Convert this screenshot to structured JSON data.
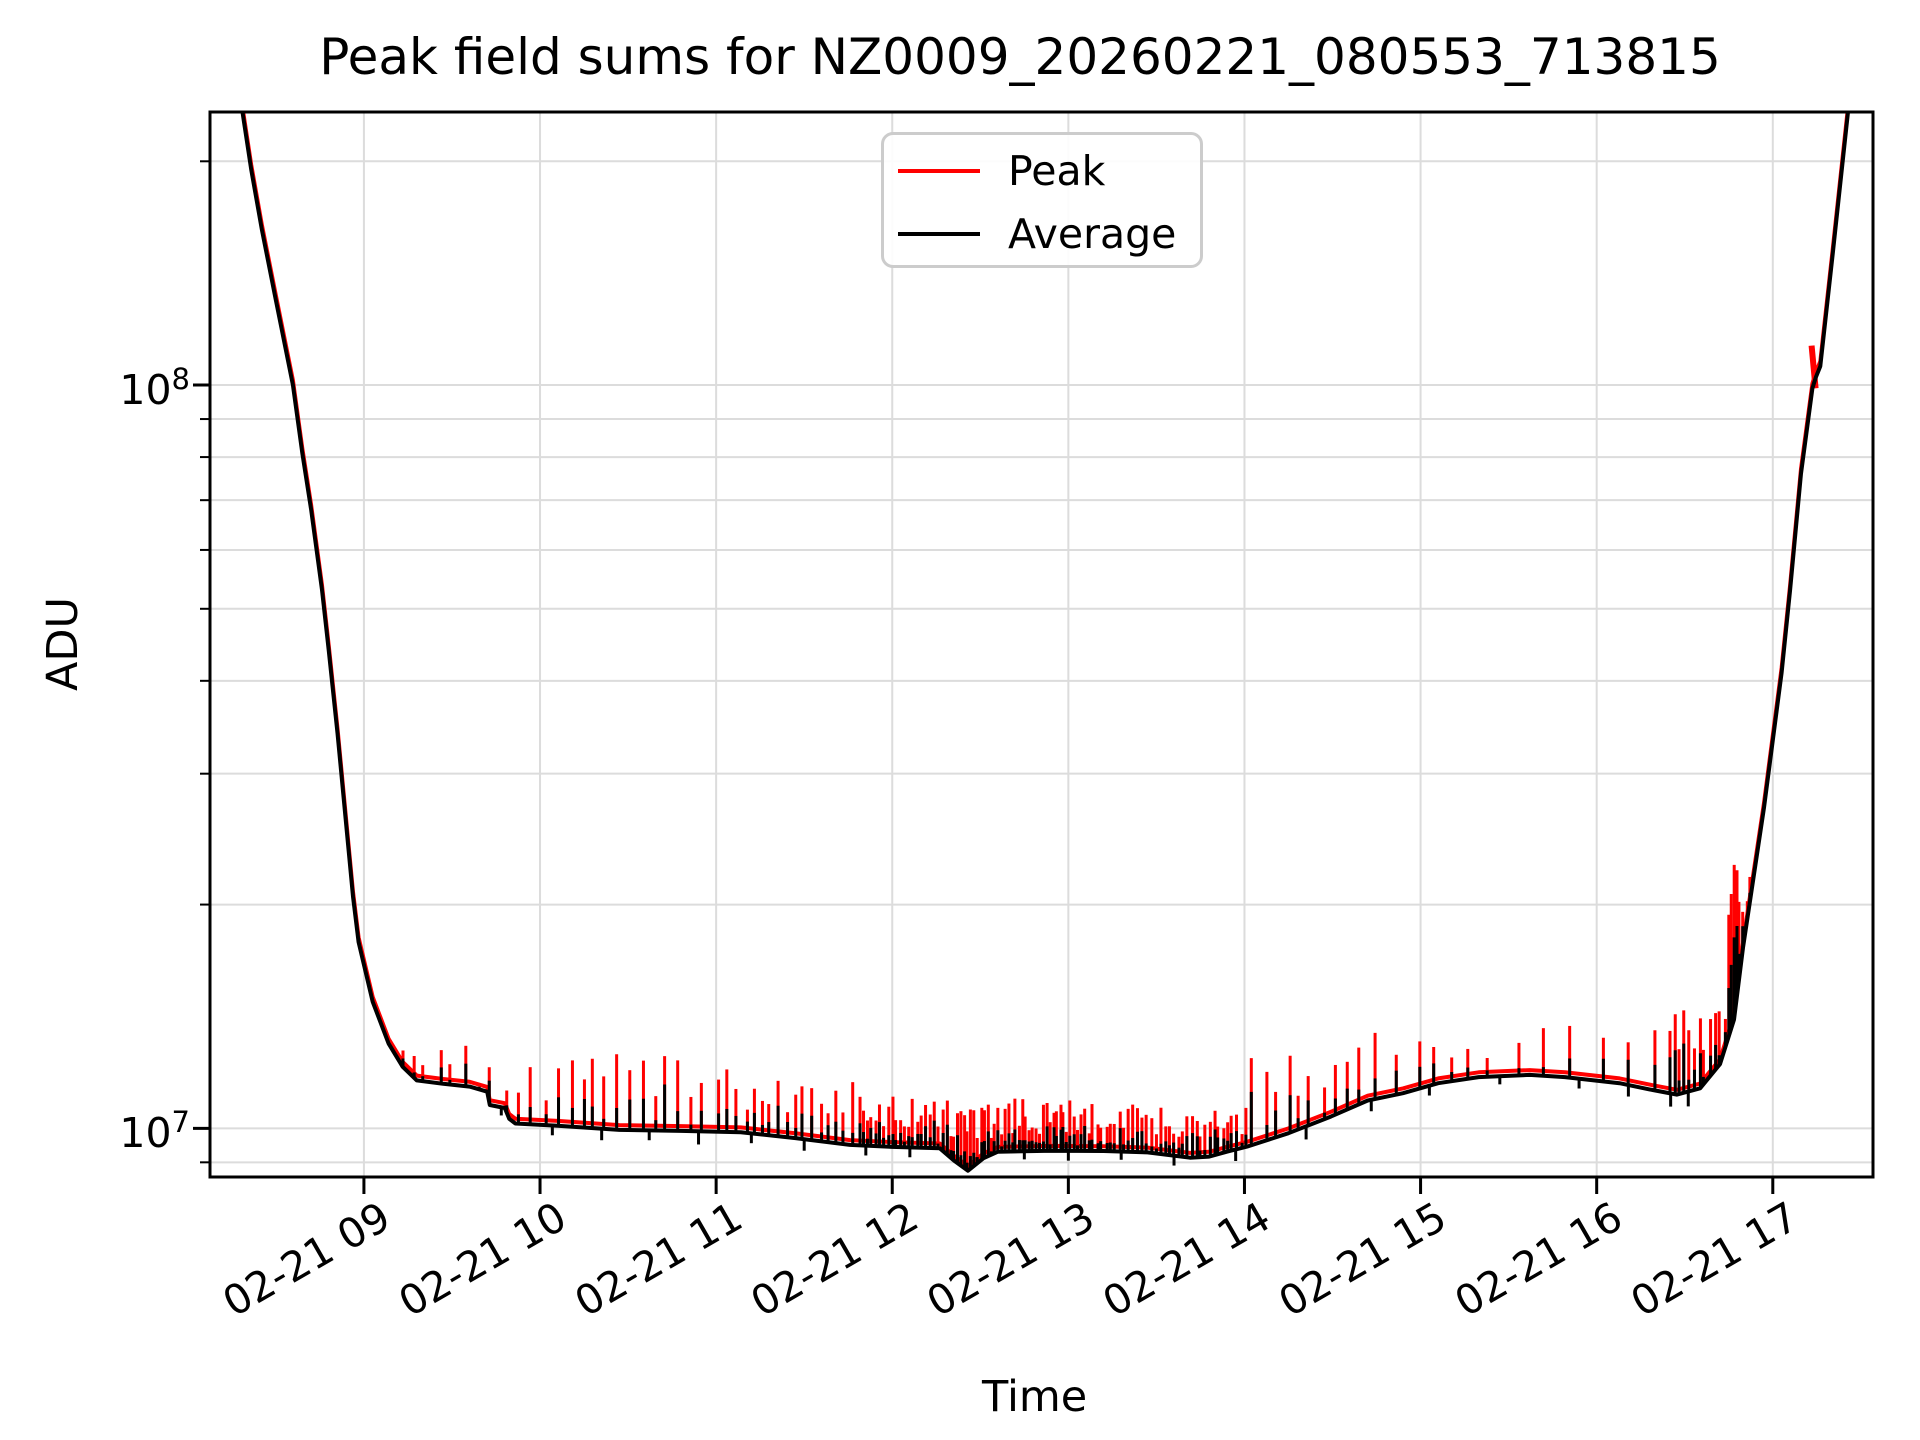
{
  "title": "Peak field sums for NZ0009_20260221_080553_713815",
  "axes": {
    "xlabel": "Time",
    "ylabel": "ADU"
  },
  "legend": {
    "items": [
      {
        "label": "Peak",
        "color": "#ff0000"
      },
      {
        "label": "Average",
        "color": "#000000"
      }
    ]
  },
  "chart_data": {
    "type": "line",
    "title": "Peak field sums for NZ0009_20260221_080553_713815",
    "xlabel": "Time",
    "ylabel": "ADU",
    "grid": true,
    "yscale": "log",
    "legend_position": "upper center-left inside",
    "xlim_hours": [
      8.126,
      17.569
    ],
    "ylim": [
      8600000,
      233000000
    ],
    "x_ticks": [
      {
        "h": 9,
        "label": "02-21 09"
      },
      {
        "h": 10,
        "label": "02-21 10"
      },
      {
        "h": 11,
        "label": "02-21 11"
      },
      {
        "h": 12,
        "label": "02-21 12"
      },
      {
        "h": 13,
        "label": "02-21 13"
      },
      {
        "h": 14,
        "label": "02-21 14"
      },
      {
        "h": 15,
        "label": "02-21 15"
      },
      {
        "h": 16,
        "label": "02-21 16"
      },
      {
        "h": 17,
        "label": "02-21 17"
      }
    ],
    "y_major_ticks": [
      {
        "v": 10000000,
        "base": "10",
        "exp": "7"
      },
      {
        "v": 100000000,
        "base": "10",
        "exp": "8"
      }
    ],
    "y_minor_ticks": [
      9000000,
      20000000,
      30000000,
      40000000,
      50000000,
      60000000,
      70000000,
      80000000,
      90000000,
      200000000
    ],
    "series": [
      {
        "name": "Peak",
        "color": "#ff0000",
        "role": "peak",
        "description": "tracks Average but spikes upward throughout the flat valley"
      },
      {
        "name": "Average",
        "color": "#000000",
        "role": "average"
      }
    ],
    "average_base_points": [
      [
        8.126,
        400000000
      ],
      [
        8.28,
        260000000
      ],
      [
        8.36,
        195000000
      ],
      [
        8.42,
        162000000
      ],
      [
        8.5,
        130000000
      ],
      [
        8.597,
        100000000
      ],
      [
        8.65,
        81000000
      ],
      [
        8.7,
        68000000
      ],
      [
        8.762,
        53000000
      ],
      [
        8.8,
        44000000
      ],
      [
        8.85,
        34000000
      ],
      [
        8.938,
        20500000
      ],
      [
        8.97,
        17800000
      ],
      [
        9.05,
        14800000
      ],
      [
        9.14,
        13000000
      ],
      [
        9.22,
        12100000
      ],
      [
        9.3,
        11600000
      ],
      [
        9.45,
        11480000
      ],
      [
        9.6,
        11380000
      ],
      [
        9.7,
        11200000
      ],
      [
        9.715,
        10750000
      ],
      [
        9.8,
        10650000
      ],
      [
        9.825,
        10300000
      ],
      [
        9.86,
        10150000
      ],
      [
        10.1,
        10080000
      ],
      [
        10.45,
        9950000
      ],
      [
        10.8,
        9920000
      ],
      [
        11.14,
        9880000
      ],
      [
        11.45,
        9700000
      ],
      [
        11.76,
        9500000
      ],
      [
        12.0,
        9440000
      ],
      [
        12.27,
        9400000
      ],
      [
        12.35,
        9050000
      ],
      [
        12.43,
        8770000
      ],
      [
        12.52,
        9120000
      ],
      [
        12.6,
        9300000
      ],
      [
        12.9,
        9330000
      ],
      [
        13.2,
        9320000
      ],
      [
        13.45,
        9280000
      ],
      [
        13.69,
        9130000
      ],
      [
        13.8,
        9160000
      ],
      [
        13.9,
        9300000
      ],
      [
        14.015,
        9450000
      ],
      [
        14.25,
        9850000
      ],
      [
        14.49,
        10370000
      ],
      [
        14.7,
        10900000
      ],
      [
        14.9,
        11150000
      ],
      [
        15.1,
        11500000
      ],
      [
        15.33,
        11720000
      ],
      [
        15.62,
        11800000
      ],
      [
        15.82,
        11720000
      ],
      [
        16.13,
        11500000
      ],
      [
        16.3,
        11280000
      ],
      [
        16.456,
        11100000
      ],
      [
        16.587,
        11320000
      ],
      [
        16.7,
        12200000
      ],
      [
        16.78,
        14000000
      ],
      [
        16.831,
        17500000
      ],
      [
        16.95,
        27000000
      ],
      [
        17.05,
        41000000
      ],
      [
        17.098,
        53000000
      ],
      [
        17.16,
        76000000
      ],
      [
        17.225,
        99000000
      ],
      [
        17.245,
        102500000
      ],
      [
        17.27,
        106000000
      ],
      [
        17.34,
        150000000
      ],
      [
        17.427,
        233000000
      ],
      [
        17.5,
        320000000
      ],
      [
        17.569,
        420000000
      ]
    ],
    "peak_over_average_ratio": 1.015,
    "peak_spike_clusters": [
      [
        9.1,
        9.6,
        7,
        11900000,
        13100000
      ],
      [
        9.62,
        9.98,
        5,
        11100000,
        12400000
      ],
      [
        10.0,
        11.1,
        16,
        10900000,
        12700000
      ],
      [
        11.1,
        11.8,
        15,
        10400000,
        11600000
      ],
      [
        11.8,
        12.32,
        22,
        10000000,
        11100000
      ],
      [
        12.32,
        13.1,
        40,
        9700000,
        11000000
      ],
      [
        13.1,
        14.02,
        36,
        9700000,
        10800000
      ],
      [
        14.02,
        14.6,
        9,
        10600000,
        12600000
      ],
      [
        14.6,
        15.45,
        8,
        12200000,
        13500000
      ],
      [
        15.5,
        16.38,
        6,
        12800000,
        13800000
      ],
      [
        16.4,
        16.74,
        12,
        12400000,
        14600000
      ],
      [
        16.74,
        16.88,
        9,
        16000000,
        23000000
      ]
    ],
    "average_down_spikes": [
      [
        9.78,
        0.025
      ],
      [
        10.07,
        0.03
      ],
      [
        10.35,
        0.035
      ],
      [
        10.62,
        0.03
      ],
      [
        10.9,
        0.04
      ],
      [
        11.2,
        0.03
      ],
      [
        11.5,
        0.035
      ],
      [
        11.85,
        0.03
      ],
      [
        12.1,
        0.03
      ],
      [
        12.75,
        0.025
      ],
      [
        13.0,
        0.03
      ],
      [
        13.3,
        0.025
      ],
      [
        13.6,
        0.03
      ],
      [
        13.95,
        0.035
      ],
      [
        14.35,
        0.04
      ],
      [
        14.72,
        0.035
      ],
      [
        15.05,
        0.03
      ],
      [
        15.45,
        0.025
      ],
      [
        15.9,
        0.03
      ],
      [
        16.18,
        0.035
      ],
      [
        16.42,
        0.04
      ],
      [
        16.52,
        0.045
      ]
    ],
    "peak_notch_on_ascent": {
      "h": 17.243,
      "v_from": 99000000,
      "v_to": 113000000
    },
    "colors": {
      "grid": "#dcdcdc",
      "spine": "#000000",
      "peak": "#ff0000",
      "average": "#000000"
    }
  }
}
